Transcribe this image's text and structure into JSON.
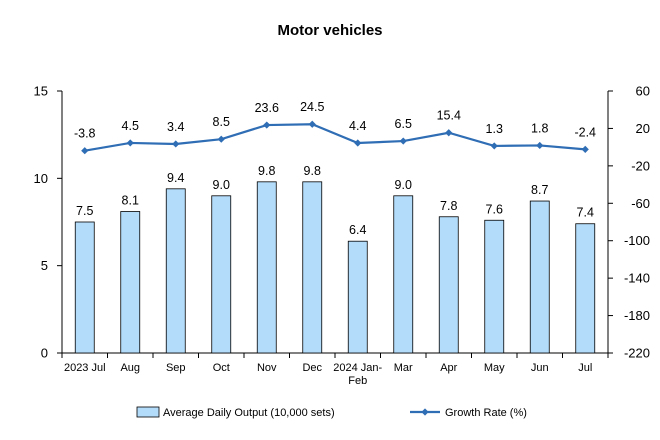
{
  "chart_data": {
    "type": "bar",
    "title": "Motor vehicles",
    "categories": [
      "2023 Jul",
      "Aug",
      "Sep",
      "Oct",
      "Nov",
      "Dec",
      "2024 Jan-Feb",
      "Mar",
      "Apr",
      "May",
      "Jun",
      "Jul"
    ],
    "category_lines": [
      [
        "2023 Jul"
      ],
      [
        "Aug"
      ],
      [
        "Sep"
      ],
      [
        "Oct"
      ],
      [
        "Nov"
      ],
      [
        "Dec"
      ],
      [
        "2024 Jan-",
        "Feb"
      ],
      [
        "Mar"
      ],
      [
        "Apr"
      ],
      [
        "May"
      ],
      [
        "Jun"
      ],
      [
        "Jul"
      ]
    ],
    "series": [
      {
        "name": "Average Daily Output (10,000 sets)",
        "type": "bar",
        "axis": "left",
        "values": [
          7.5,
          8.1,
          9.4,
          9.0,
          9.8,
          9.8,
          6.4,
          9.0,
          7.8,
          7.6,
          8.7,
          7.4
        ],
        "labels": [
          "7.5",
          "8.1",
          "9.4",
          "9.0",
          "9.8",
          "9.8",
          "6.4",
          "9.0",
          "7.8",
          "7.6",
          "8.7",
          "7.4"
        ]
      },
      {
        "name": "Growth Rate (%)",
        "type": "line",
        "axis": "right",
        "values": [
          -3.8,
          4.5,
          3.4,
          8.5,
          23.6,
          24.5,
          4.4,
          6.5,
          15.4,
          1.3,
          1.8,
          -2.4
        ],
        "labels": [
          "-3.8",
          "4.5",
          "3.4",
          "8.5",
          "23.6",
          "24.5",
          "4.4",
          "6.5",
          "15.4",
          "1.3",
          "1.8",
          "-2.4"
        ]
      }
    ],
    "y_left": {
      "min": 0,
      "max": 15,
      "ticks": [
        "0",
        "5",
        "10",
        "15"
      ]
    },
    "y_right": {
      "min": -220,
      "max": 60,
      "ticks": [
        "-220",
        "-180",
        "-140",
        "-100",
        "-60",
        "-20",
        "20",
        "60"
      ]
    },
    "legend_position": "bottom",
    "grid": false,
    "colors": {
      "bar_fill": "#b3dcfb",
      "bar_stroke": "#000000",
      "line": "#2f6db4"
    }
  }
}
